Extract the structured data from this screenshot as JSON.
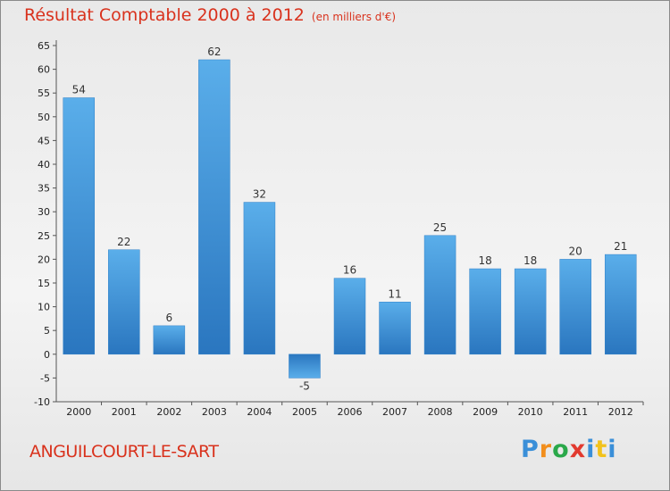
{
  "chart_data": {
    "type": "bar",
    "title": "Résultat Comptable 2000 à 2012",
    "subtitle": "(en milliers d'€)",
    "categories": [
      "2000",
      "2001",
      "2002",
      "2003",
      "2004",
      "2005",
      "2006",
      "2007",
      "2008",
      "2009",
      "2010",
      "2011",
      "2012"
    ],
    "values": [
      54,
      22,
      6,
      62,
      32,
      -5,
      16,
      11,
      25,
      18,
      18,
      20,
      21
    ],
    "ylim": [
      -10,
      65
    ],
    "yticks": [
      -10,
      -5,
      0,
      5,
      10,
      15,
      20,
      25,
      30,
      35,
      40,
      45,
      50,
      55,
      60,
      65
    ],
    "xlabel": "",
    "ylabel": "",
    "bar_color": "#4a9fe0",
    "grid": false
  },
  "commune": "ANGUILCOURT-LE-SART",
  "brand": {
    "p": "P",
    "r": "r",
    "o": "o",
    "x": "x",
    "i": "i",
    "t": "t",
    "i2": "i"
  }
}
